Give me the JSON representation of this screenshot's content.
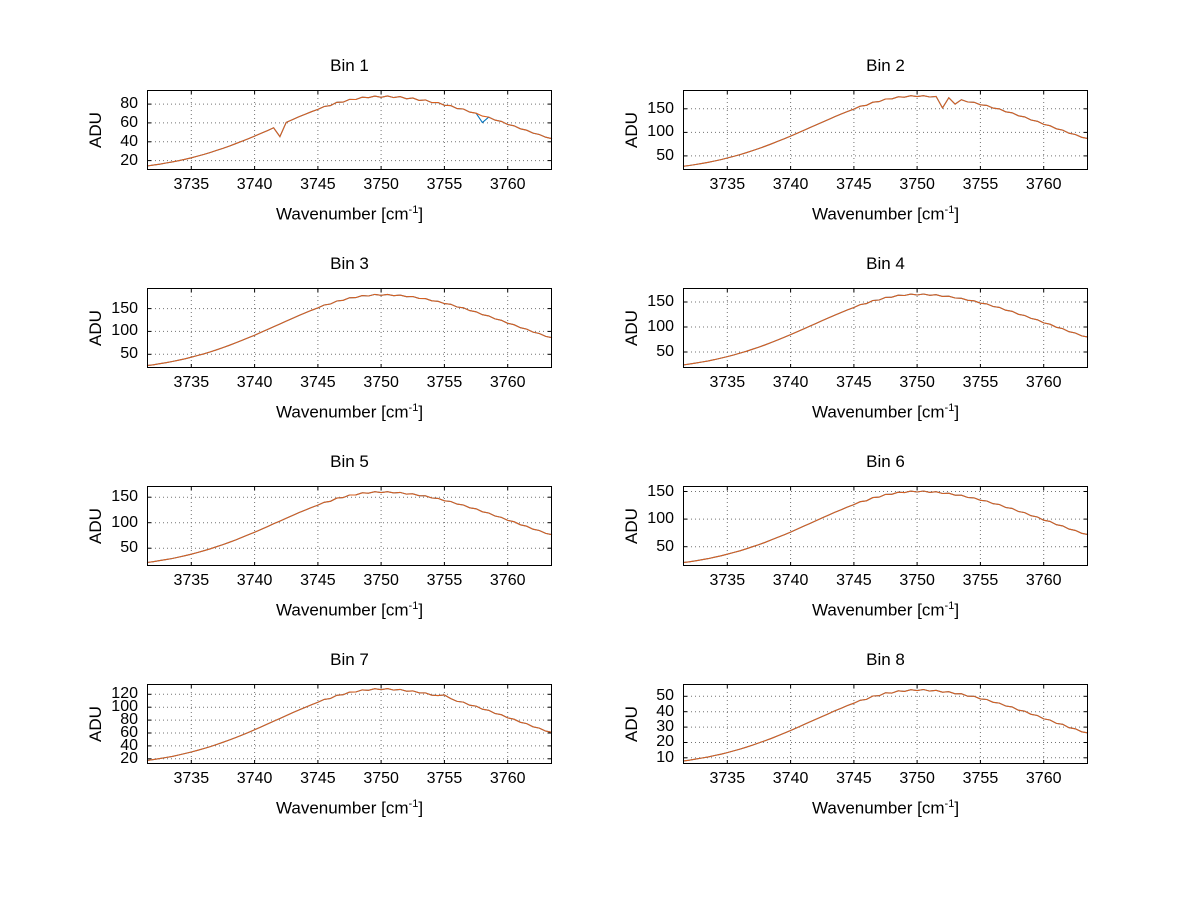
{
  "figure": {
    "background": "#ffffff",
    "line_color": "#d95f1e",
    "second_line_color": "#0072bd",
    "grid_color": "#737373",
    "axis_color": "#000000",
    "text_color": "#000000"
  },
  "chart_data": [
    {
      "type": "line",
      "title": "Bin 1",
      "xlabel": {
        "main": "Wavenumber [cm",
        "sup": "-1",
        "end": "]"
      },
      "ylabel": "ADU",
      "xlim": [
        3731.5,
        3763.5
      ],
      "ylim": [
        10,
        95
      ],
      "xticks": [
        3735,
        3740,
        3745,
        3750,
        3755,
        3760
      ],
      "yticks": [
        20,
        40,
        60,
        80
      ],
      "grid": true,
      "legend": "none",
      "x_start": 3731.5,
      "x_step": 0.5,
      "values": [
        14.3,
        15.2,
        16.2,
        17.4,
        18.6,
        19.9,
        21.4,
        23.0,
        24.8,
        26.6,
        28.6,
        30.8,
        33.0,
        35.4,
        37.9,
        40.6,
        43.3,
        46.0,
        48.9,
        51.8,
        54.8,
        45.5,
        60.6,
        63.5,
        66.5,
        69.2,
        71.9,
        74.4,
        77.5,
        78.4,
        81.9,
        82.1,
        85.0,
        84.9,
        87.3,
        86.8,
        88.5,
        87.2,
        88.6,
        86.9,
        88.0,
        85.7,
        86.5,
        84.0,
        84.5,
        81.6,
        81.7,
        78.7,
        78.4,
        75.2,
        74.8,
        71.5,
        70.4,
        67.3,
        66.2,
        63.0,
        61.6,
        58.3,
        57.0,
        53.8,
        52.3,
        49.2,
        47.7,
        44.9,
        43.3
      ],
      "second_series_deviations": [
        [
          53,
          60.5
        ]
      ]
    },
    {
      "type": "line",
      "title": "Bin 2",
      "xlabel": {
        "main": "Wavenumber [cm",
        "sup": "-1",
        "end": "]"
      },
      "ylabel": "ADU",
      "xlim": [
        3731.5,
        3763.5
      ],
      "ylim": [
        20,
        190
      ],
      "xticks": [
        3735,
        3740,
        3745,
        3750,
        3755,
        3760
      ],
      "yticks": [
        50,
        100,
        150
      ],
      "grid": true,
      "legend": "none",
      "x_start": 3731.5,
      "x_step": 0.5,
      "values": [
        27.8,
        29.6,
        31.7,
        34.0,
        36.4,
        39.1,
        42.2,
        45.5,
        49.0,
        52.7,
        56.8,
        61.2,
        65.7,
        70.6,
        75.6,
        80.9,
        86.4,
        92.0,
        97.8,
        103.8,
        109.8,
        115.6,
        121.6,
        127.4,
        133.4,
        138.9,
        144.4,
        149.5,
        155.6,
        157.5,
        164.0,
        165.3,
        170.9,
        171.0,
        175.5,
        174.6,
        177.8,
        176.0,
        177.9,
        175.1,
        176.4,
        152.0,
        173.6,
        160.0,
        169.3,
        164.6,
        163.8,
        158.6,
        157.2,
        151.5,
        149.8,
        143.7,
        141.5,
        135.2,
        132.8,
        126.2,
        123.5,
        116.9,
        114.2,
        107.6,
        104.8,
        98.3,
        95.5,
        89.4,
        86.8
      ],
      "second_series_deviations": []
    },
    {
      "type": "line",
      "title": "Bin 3",
      "xlabel": {
        "main": "Wavenumber [cm",
        "sup": "-1",
        "end": "]"
      },
      "ylabel": "ADU",
      "xlim": [
        3731.5,
        3763.5
      ],
      "ylim": [
        20,
        195
      ],
      "xticks": [
        3735,
        3740,
        3745,
        3750,
        3755,
        3760
      ],
      "yticks": [
        50,
        100,
        150
      ],
      "grid": true,
      "legend": "none",
      "x_start": 3731.5,
      "x_step": 0.5,
      "values": [
        25.3,
        27.1,
        29.3,
        31.7,
        34.2,
        37.0,
        40.2,
        43.6,
        47.3,
        51.1,
        55.3,
        59.9,
        64.6,
        69.6,
        74.8,
        80.4,
        86.1,
        91.8,
        97.8,
        104.1,
        110.3,
        116.3,
        122.5,
        128.6,
        134.8,
        140.5,
        146.2,
        151.4,
        157.8,
        159.9,
        166.6,
        168.0,
        173.6,
        174.1,
        178.3,
        177.6,
        180.9,
        179.1,
        181.0,
        178.2,
        179.4,
        175.9,
        176.4,
        172.2,
        171.8,
        167.1,
        166.0,
        160.9,
        159.3,
        153.5,
        151.6,
        145.5,
        143.0,
        136.6,
        133.9,
        127.3,
        124.4,
        117.8,
        114.8,
        108.2,
        105.0,
        98.5,
        95.4,
        89.2,
        86.3
      ],
      "second_series_deviations": []
    },
    {
      "type": "line",
      "title": "Bin 4",
      "xlabel": {
        "main": "Wavenumber [cm",
        "sup": "-1",
        "end": "]"
      },
      "ylabel": "ADU",
      "xlim": [
        3731.5,
        3763.5
      ],
      "ylim": [
        18,
        178
      ],
      "xticks": [
        3735,
        3740,
        3745,
        3750,
        3755,
        3760
      ],
      "yticks": [
        50,
        100,
        150
      ],
      "grid": true,
      "legend": "none",
      "x_start": 3731.5,
      "x_step": 0.5,
      "values": [
        24.1,
        25.8,
        27.8,
        29.9,
        32.2,
        34.8,
        37.7,
        40.8,
        44.1,
        47.7,
        51.5,
        55.6,
        59.9,
        64.5,
        69.2,
        74.3,
        79.5,
        84.7,
        90.2,
        95.8,
        101.5,
        107.0,
        112.7,
        118.2,
        123.8,
        129.0,
        134.2,
        139.0,
        144.8,
        146.8,
        152.9,
        154.0,
        159.2,
        159.5,
        163.5,
        162.9,
        165.8,
        164.1,
        165.9,
        163.3,
        164.5,
        161.2,
        161.6,
        157.9,
        157.5,
        153.3,
        152.3,
        147.6,
        146.2,
        140.9,
        139.2,
        133.6,
        131.4,
        125.4,
        123.1,
        117.1,
        114.4,
        108.3,
        105.7,
        99.5,
        96.8,
        90.7,
        88.1,
        82.3,
        79.7
      ],
      "second_series_deviations": []
    },
    {
      "type": "line",
      "title": "Bin 5",
      "xlabel": {
        "main": "Wavenumber [cm",
        "sup": "-1",
        "end": "]"
      },
      "ylabel": "ADU",
      "xlim": [
        3731.5,
        3763.5
      ],
      "ylim": [
        15,
        172
      ],
      "xticks": [
        3735,
        3740,
        3745,
        3750,
        3755,
        3760
      ],
      "yticks": [
        50,
        100,
        150
      ],
      "grid": true,
      "legend": "none",
      "x_start": 3731.5,
      "x_step": 0.5,
      "values": [
        21.9,
        23.5,
        25.5,
        27.6,
        29.8,
        32.4,
        35.2,
        38.2,
        41.5,
        45.0,
        48.7,
        52.8,
        57.0,
        61.5,
        66.1,
        71.1,
        76.2,
        81.3,
        86.7,
        92.2,
        97.8,
        103.2,
        108.7,
        114.1,
        119.7,
        124.8,
        129.9,
        134.5,
        140.1,
        142.0,
        148.2,
        149.2,
        154.4,
        154.6,
        158.6,
        157.9,
        160.8,
        159.1,
        160.9,
        158.4,
        159.5,
        156.2,
        156.7,
        153.0,
        152.8,
        148.5,
        147.6,
        143.0,
        141.6,
        136.4,
        134.8,
        129.2,
        127.2,
        121.3,
        119.0,
        113.1,
        110.4,
        104.4,
        101.9,
        95.8,
        93.2,
        87.2,
        84.6,
        78.9,
        76.4
      ],
      "second_series_deviations": []
    },
    {
      "type": "line",
      "title": "Bin 6",
      "xlabel": {
        "main": "Wavenumber [cm",
        "sup": "-1",
        "end": "]"
      },
      "ylabel": "ADU",
      "xlim": [
        3731.5,
        3763.5
      ],
      "ylim": [
        15,
        160
      ],
      "xticks": [
        3735,
        3740,
        3745,
        3750,
        3755,
        3760
      ],
      "yticks": [
        50,
        100,
        150
      ],
      "grid": true,
      "legend": "none",
      "x_start": 3731.5,
      "x_step": 0.5,
      "values": [
        21.1,
        22.6,
        24.4,
        26.4,
        28.5,
        30.9,
        33.5,
        36.3,
        39.4,
        42.6,
        46.1,
        49.9,
        53.8,
        58.0,
        62.4,
        67.0,
        71.7,
        76.5,
        81.5,
        86.7,
        91.9,
        96.9,
        102.1,
        107.2,
        112.3,
        117.1,
        121.9,
        126.2,
        131.5,
        133.2,
        138.9,
        139.9,
        144.8,
        144.9,
        148.7,
        148.0,
        150.8,
        149.2,
        150.9,
        148.4,
        149.6,
        146.4,
        147.0,
        143.4,
        143.3,
        139.2,
        138.5,
        134.0,
        132.9,
        127.9,
        126.5,
        121.1,
        119.4,
        113.7,
        111.7,
        106.1,
        103.8,
        98.0,
        95.8,
        89.9,
        87.6,
        81.8,
        79.6,
        74.2,
        72.0
      ],
      "second_series_deviations": []
    },
    {
      "type": "line",
      "title": "Bin 7",
      "xlabel": {
        "main": "Wavenumber [cm",
        "sup": "-1",
        "end": "]"
      },
      "ylabel": "ADU",
      "xlim": [
        3731.5,
        3763.5
      ],
      "ylim": [
        12,
        136
      ],
      "xticks": [
        3735,
        3740,
        3745,
        3750,
        3755,
        3760
      ],
      "yticks": [
        20,
        40,
        60,
        80,
        100,
        120
      ],
      "grid": true,
      "legend": "none",
      "x_start": 3731.5,
      "x_step": 0.5,
      "values": [
        17.5,
        18.8,
        20.4,
        22.0,
        23.8,
        25.9,
        28.2,
        30.6,
        33.2,
        36.0,
        39.0,
        42.2,
        45.6,
        49.2,
        52.9,
        56.8,
        60.9,
        65.0,
        69.3,
        73.8,
        78.2,
        82.5,
        87.0,
        91.3,
        95.7,
        99.8,
        103.9,
        107.6,
        112.2,
        113.6,
        118.5,
        119.4,
        123.5,
        123.6,
        126.9,
        126.2,
        128.7,
        127.2,
        128.8,
        126.6,
        127.6,
        124.9,
        125.3,
        122.4,
        122.2,
        118.6,
        118.0,
        118.9,
        113.3,
        109.0,
        107.9,
        103.2,
        101.8,
        96.9,
        95.2,
        90.3,
        88.4,
        83.4,
        81.5,
        76.6,
        74.6,
        69.6,
        67.7,
        63.0,
        61.2
      ],
      "second_series_deviations": []
    },
    {
      "type": "line",
      "title": "Bin 8",
      "xlabel": {
        "main": "Wavenumber [cm",
        "sup": "-1",
        "end": "]"
      },
      "ylabel": "ADU",
      "xlim": [
        3731.5,
        3763.5
      ],
      "ylim": [
        6,
        58
      ],
      "xticks": [
        3735,
        3740,
        3745,
        3750,
        3755,
        3760
      ],
      "yticks": [
        10,
        20,
        30,
        40,
        50
      ],
      "grid": true,
      "legend": "none",
      "x_start": 3731.5,
      "x_step": 0.5,
      "values": [
        7.9,
        8.5,
        9.2,
        9.9,
        10.6,
        11.5,
        12.4,
        13.4,
        14.5,
        15.7,
        16.9,
        18.3,
        19.7,
        21.2,
        22.7,
        24.4,
        26.1,
        27.8,
        29.6,
        31.4,
        33.3,
        35.1,
        36.9,
        38.7,
        40.6,
        42.3,
        44.0,
        45.5,
        47.4,
        48.0,
        50.2,
        50.4,
        52.3,
        52.1,
        53.6,
        53.2,
        54.3,
        53.7,
        54.4,
        53.4,
        53.9,
        52.7,
        53.0,
        51.6,
        51.7,
        50.1,
        50.0,
        48.3,
        47.9,
        46.1,
        45.6,
        43.7,
        43.1,
        41.0,
        40.4,
        38.3,
        37.5,
        35.3,
        34.6,
        32.4,
        31.8,
        29.6,
        28.9,
        26.9,
        26.2
      ],
      "second_series_deviations": []
    }
  ]
}
